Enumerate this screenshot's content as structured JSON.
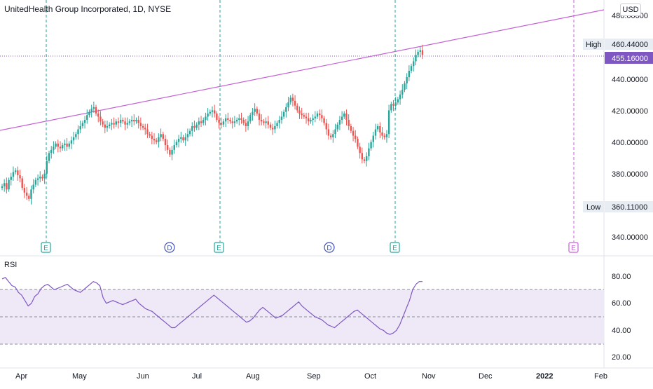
{
  "header": {
    "title": "UnitedHealth Group Incorporated, 1D, NYSE",
    "currency": "USD"
  },
  "price_axis": {
    "ticks": [
      "480.00000",
      "460.44000",
      "455.16000",
      "440.00000",
      "420.00000",
      "400.00000",
      "380.00000",
      "360.11000",
      "340.00000"
    ],
    "high_label": "High",
    "high_value": "460.44000",
    "last_value": "455.16000",
    "low_label": "Low",
    "low_value": "360.11000"
  },
  "time_axis": {
    "labels": [
      "Apr",
      "May",
      "Jun",
      "Jul",
      "Aug",
      "Sep",
      "Oct",
      "Nov",
      "Dec",
      "2022",
      "Feb"
    ]
  },
  "rsi": {
    "label": "RSI",
    "ticks": [
      "80.00",
      "60.00",
      "40.00",
      "20.00"
    ]
  },
  "markers": [
    {
      "type": "earnings",
      "text": "E"
    },
    {
      "type": "dividend",
      "text": "D"
    },
    {
      "type": "earnings",
      "text": "E"
    },
    {
      "type": "dividend",
      "text": "D"
    },
    {
      "type": "earnings",
      "text": "E"
    },
    {
      "type": "earnings-future",
      "text": "E"
    }
  ],
  "colors": {
    "up": "#26a69a",
    "down": "#ef5350",
    "trendline": "#c561d5",
    "rsi_line": "#7e57c2",
    "rsi_band": "#ede7f6",
    "earnings": "#26a69a",
    "dividend": "#3f51b5",
    "last_price": "#7e57c2"
  },
  "chart_data": {
    "type": "candlestick",
    "title": "UnitedHealth Group Incorporated, 1D, NYSE",
    "ylim": [
      330,
      490
    ],
    "high": 460.44,
    "low": 360.11,
    "last": 455.16,
    "closes": [
      372,
      374,
      370,
      376,
      378,
      381,
      382,
      379,
      377,
      371,
      368,
      366,
      364,
      370,
      373,
      376,
      377,
      378,
      377,
      380,
      388,
      393,
      395,
      397,
      399,
      397,
      396,
      398,
      399,
      397,
      399,
      401,
      403,
      405,
      408,
      410,
      412,
      414,
      417,
      419,
      421,
      422,
      418,
      416,
      413,
      411,
      409,
      410,
      411,
      412,
      411,
      413,
      412,
      414,
      413,
      411,
      412,
      413,
      414,
      413,
      414,
      412,
      410,
      409,
      408,
      405,
      404,
      402,
      401,
      400,
      403,
      405,
      402,
      398,
      395,
      392,
      395,
      398,
      400,
      402,
      403,
      401,
      403,
      405,
      407,
      410,
      409,
      411,
      413,
      412,
      414,
      416,
      418,
      419,
      420,
      418,
      414,
      412,
      411,
      413,
      415,
      414,
      413,
      412,
      413,
      414,
      415,
      414,
      412,
      410,
      413,
      417,
      419,
      421,
      418,
      414,
      413,
      412,
      413,
      411,
      409,
      408,
      410,
      412,
      414,
      416,
      419,
      422,
      425,
      428,
      426,
      423,
      420,
      418,
      417,
      416,
      415,
      413,
      414,
      415,
      416,
      418,
      417,
      415,
      412,
      408,
      404,
      403,
      405,
      408,
      411,
      414,
      416,
      418,
      414,
      410,
      407,
      404,
      402,
      397,
      393,
      389,
      388,
      391,
      396,
      400,
      404,
      408,
      410,
      406,
      404,
      403,
      405,
      420,
      424,
      423,
      425,
      427,
      430,
      433,
      437,
      441,
      445,
      448,
      451,
      455,
      457,
      458,
      455
    ],
    "rsi": [
      78,
      79,
      76,
      73,
      72,
      68,
      66,
      62,
      58,
      60,
      65,
      67,
      71,
      73,
      74,
      72,
      70,
      71,
      72,
      73,
      74,
      72,
      70,
      69,
      68,
      70,
      72,
      74,
      76,
      75,
      73,
      64,
      60,
      61,
      62,
      61,
      60,
      59,
      60,
      61,
      62,
      63,
      60,
      58,
      56,
      55,
      54,
      52,
      50,
      48,
      46,
      44,
      42,
      42,
      44,
      46,
      48,
      50,
      52,
      54,
      56,
      58,
      60,
      62,
      64,
      66,
      64,
      62,
      60,
      58,
      56,
      54,
      52,
      50,
      48,
      46,
      47,
      49,
      52,
      55,
      57,
      55,
      53,
      51,
      49,
      50,
      51,
      53,
      55,
      57,
      59,
      61,
      58,
      56,
      54,
      52,
      50,
      49,
      48,
      46,
      44,
      43,
      42,
      44,
      46,
      48,
      50,
      52,
      54,
      55,
      53,
      51,
      49,
      47,
      45,
      43,
      41,
      40,
      38,
      37,
      38,
      40,
      44,
      50,
      56,
      62,
      70,
      74,
      76,
      76
    ]
  }
}
